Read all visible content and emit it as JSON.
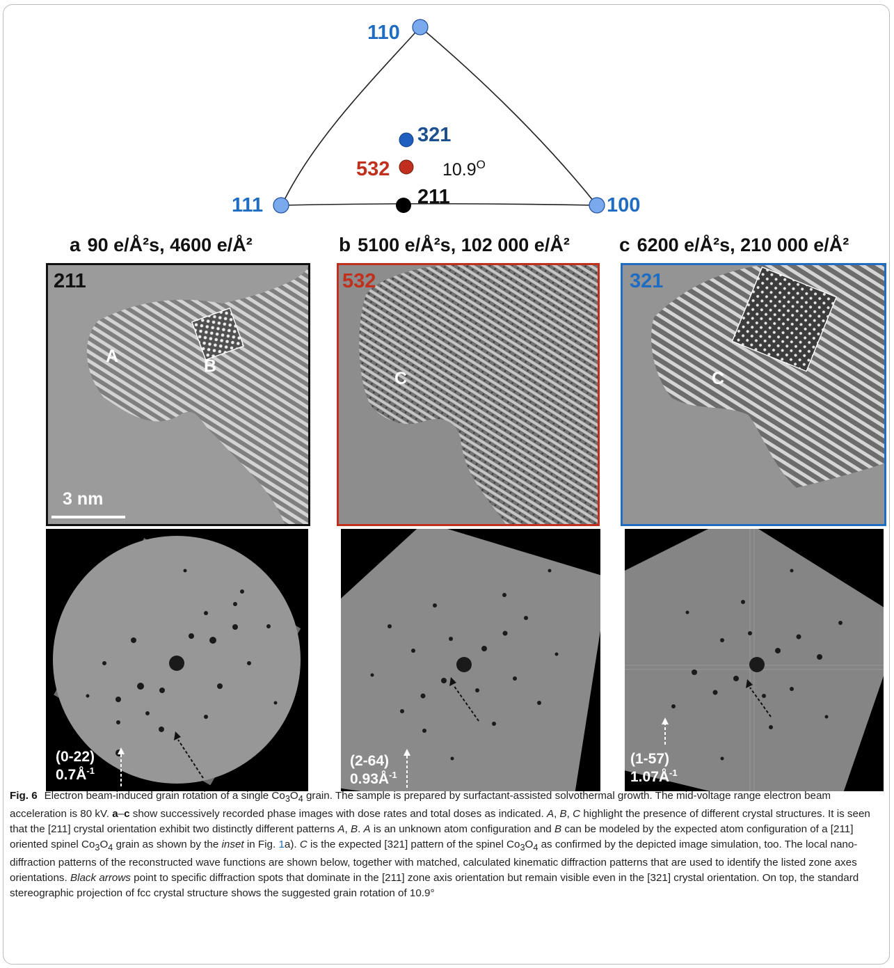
{
  "stereo": {
    "poles": [
      {
        "label": "110",
        "color": "#1f6dc2"
      },
      {
        "label": "111",
        "color": "#1f6dc2"
      },
      {
        "label": "100",
        "color": "#1f6dc2"
      },
      {
        "label": "321",
        "color": "#1d4f8f"
      },
      {
        "label": "532",
        "color": "#c0301c"
      },
      {
        "label": "211",
        "color": "#111111"
      }
    ],
    "angle_label": "10.9",
    "angle_unit": "O"
  },
  "panels": [
    {
      "letter": "a",
      "title": "90 e/Å²s,  4600 e/Å²",
      "zone": "211",
      "zone_color": "#111111",
      "frame_color": "#111111",
      "labels": [
        "A",
        "B"
      ],
      "scale_bar": "3 nm",
      "fft_index": "(0-22)",
      "fft_freq": "0.7Å",
      "fft_unit": "-1"
    },
    {
      "letter": "b",
      "title": "5100 e/Å²s,  102 000 e/Å²",
      "zone": "532",
      "zone_color": "#c0301c",
      "frame_color": "#c0301c",
      "labels": [
        "C"
      ],
      "fft_index": "(2-64)",
      "fft_freq": "0.93Å",
      "fft_unit": "-1"
    },
    {
      "letter": "c",
      "title": "6200 e/Å²s,  210 000 e/Å²",
      "zone": "321",
      "zone_color": "#1f6dc2",
      "frame_color": "#1f6dc2",
      "labels": [
        "C"
      ],
      "fft_index": "(1-57)",
      "fft_freq": "1.07Å",
      "fft_unit": "-1"
    }
  ],
  "caption": {
    "fig_label": "Fig. 6",
    "s1": "Electron beam-induced grain rotation of a single Co",
    "s1_sub3": "3",
    "s1_O": "O",
    "s1_sub4": "4",
    "s2": " grain. The sample is prepared by surfactant-assisted solvothermal growth. The mid-voltage range electron beam acceleration is 80 kV. ",
    "ac": "a",
    "dash": "–",
    "cc": "c",
    "s3": " show successively recorded phase images with dose rates and total doses as indicated. ",
    "A": "A",
    "comma1": ", ",
    "B": "B",
    "comma2": ", ",
    "C": "C",
    "s4": " highlight the presence of different crystal structures. It is seen that the [211] crystal orientation exhibit two distinctly different patterns ",
    "A2": "A",
    "comma3": ", ",
    "B2": "B",
    "dot1": ". ",
    "A3": "A",
    "s5": " is an unknown atom configuration and ",
    "B3": "B",
    "s6": " can be modeled by the expected atom configuration of a [211] oriented spinel Co",
    "s6_sub3": "3",
    "s6_O": "O",
    "s6_sub4": "4",
    "s7": " grain as shown by the ",
    "inset": "inset",
    "s8": " in Fig. ",
    "ref1": "1",
    "s9": "a). ",
    "C2": "C",
    "s10": " is the expected [321] pattern of the spinel Co",
    "s10_sub3": "3",
    "s10_O": "O",
    "s10_sub4": "4",
    "s11": " as confirmed by the depicted image simulation, too. The local nano-diffraction patterns of the reconstructed wave functions are shown below, together with matched, calculated kinematic diffraction patterns that are used to identify the listed zone axes orientations. ",
    "black_arrows": "Black arrows",
    "s12": " point to specific diffraction spots that dominate in the [211] zone axis orientation but remain visible even in the [321] crystal orientation. On top, the standard stereographic projection of fcc crystal structure shows the suggested grain rotation of 10.9°"
  }
}
